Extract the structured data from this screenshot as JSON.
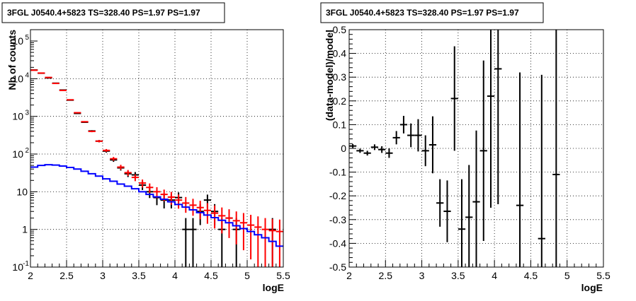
{
  "colors": {
    "data": "#000000",
    "model_sum": "#ff0000",
    "source_model": "#0000ff",
    "grid": "#000000",
    "background": "#ffffff"
  },
  "chart_data": [
    {
      "type": "scatter",
      "title": "3FGL J0540.4+5823 TS=328.40 PS=1.97 PS=1.97",
      "xlabel": "logE",
      "ylabel": "Nb of counts",
      "xlim": [
        2,
        5.5
      ],
      "ylim": [
        0.1,
        200000
      ],
      "yscale": "log",
      "grid": true,
      "x_ticks": [
        "2",
        "2.5",
        "3",
        "3.5",
        "4",
        "4.5",
        "5",
        "5.5"
      ],
      "y_ticks": [
        {
          "value": 0.1,
          "label": "10",
          "exp": "-1"
        },
        {
          "value": 1,
          "label": "1",
          "exp": ""
        },
        {
          "value": 10,
          "label": "10",
          "exp": ""
        },
        {
          "value": 100,
          "label": "10",
          "exp": "2"
        },
        {
          "value": 1000,
          "label": "10",
          "exp": "3"
        },
        {
          "value": 10000,
          "label": "10",
          "exp": "4"
        },
        {
          "value": 100000,
          "label": "10",
          "exp": "5"
        }
      ],
      "bin_width": 0.1,
      "series": [
        {
          "kind": "data",
          "x": [
            2.05,
            2.15,
            2.25,
            2.35,
            2.45,
            2.55,
            2.65,
            2.75,
            2.85,
            2.95,
            3.05,
            3.15,
            3.25,
            3.35,
            3.45,
            3.55,
            3.65,
            3.75,
            3.85,
            3.95,
            4.05,
            4.15,
            4.25,
            4.35,
            4.45,
            4.55,
            4.65,
            4.75,
            4.85,
            4.95,
            5.05,
            5.15,
            5.25,
            5.35,
            5.45
          ],
          "y": [
            17000,
            14000,
            10500,
            7600,
            5000,
            2700,
            1200,
            700,
            410,
            220,
            120,
            70,
            43,
            30,
            28,
            15,
            10,
            7,
            6,
            6,
            7,
            1,
            1,
            3,
            6,
            3,
            1,
            2,
            1,
            0,
            0,
            0,
            0,
            1,
            0
          ],
          "err": [
            130,
            118,
            102,
            87,
            70,
            52,
            35,
            26,
            20,
            15,
            11,
            8,
            6.5,
            5.5,
            5.3,
            3.9,
            3.2,
            2.6,
            2.4,
            2.4,
            2.6,
            1,
            1,
            1.7,
            2.4,
            1.7,
            1,
            1.4,
            1,
            0,
            0,
            0,
            0,
            1,
            0
          ]
        },
        {
          "kind": "model_sum",
          "x": [
            2.05,
            2.15,
            2.25,
            2.35,
            2.45,
            2.55,
            2.65,
            2.75,
            2.85,
            2.95,
            3.05,
            3.15,
            3.25,
            3.35,
            3.45,
            3.55,
            3.65,
            3.75,
            3.85,
            3.95,
            4.05,
            4.15,
            4.25,
            4.35,
            4.45,
            4.55,
            4.65,
            4.75,
            4.85,
            4.95,
            5.05,
            5.15,
            5.25,
            5.35,
            5.45
          ],
          "y": [
            16800,
            14100,
            10800,
            7500,
            4900,
            2750,
            1250,
            720,
            400,
            220,
            125,
            75,
            45,
            32,
            24,
            17,
            13,
            10,
            8.5,
            7.2,
            6,
            5,
            4.4,
            3.8,
            3.2,
            2.7,
            2.3,
            2,
            1.7,
            1.5,
            1.3,
            1.15,
            1,
            0.93,
            0.88
          ],
          "err": [
            130,
            119,
            104,
            87,
            70,
            52,
            35,
            27,
            20,
            15,
            11,
            8.7,
            6.7,
            5.7,
            4.9,
            4.1,
            3.6,
            3.2,
            2.9,
            2.7,
            2.45,
            2.24,
            2.1,
            1.95,
            1.79,
            1.64,
            1.52,
            1.41,
            1.3,
            1.22,
            1.14,
            1.07,
            1,
            0.96,
            0.94
          ]
        },
        {
          "kind": "source_model",
          "edges": [
            2.0,
            2.1,
            2.2,
            2.3,
            2.4,
            2.5,
            2.6,
            2.7,
            2.8,
            2.9,
            3.0,
            3.1,
            3.2,
            3.3,
            3.4,
            3.5,
            3.6,
            3.7,
            3.8,
            3.9,
            4.0,
            4.1,
            4.2,
            4.3,
            4.4,
            4.5,
            4.6,
            4.7,
            4.8,
            4.9,
            5.0,
            5.1,
            5.2,
            5.3,
            5.4,
            5.5
          ],
          "y": [
            45,
            50,
            52,
            51,
            48,
            44,
            40,
            35,
            30,
            26,
            22,
            19,
            16,
            14,
            12,
            10,
            8.5,
            7.3,
            6.3,
            5.4,
            4.6,
            3.9,
            3.3,
            2.8,
            2.4,
            2.05,
            1.75,
            1.5,
            1.25,
            1.05,
            0.88,
            0.72,
            0.6,
            0.48,
            0.36
          ]
        }
      ]
    },
    {
      "type": "scatter",
      "title": "3FGL J0540.4+5823 TS=328.40 PS=1.97 PS=1.97",
      "xlabel": "logE",
      "ylabel": "(data-model)/model",
      "xlim": [
        2,
        5.5
      ],
      "ylim": [
        -0.5,
        0.5
      ],
      "yscale": "linear",
      "grid": true,
      "x_ticks": [
        "2",
        "2.5",
        "3",
        "3.5",
        "4",
        "4.5",
        "5",
        "5.5"
      ],
      "y_ticks": [
        "-0.5",
        "-0.4",
        "-0.3",
        "-0.2",
        "-0.1",
        "0",
        "0.1",
        "0.2",
        "0.3",
        "0.4",
        "0.5"
      ],
      "bin_width": 0.1,
      "series": [
        {
          "kind": "residual",
          "x": [
            2.05,
            2.15,
            2.25,
            2.35,
            2.45,
            2.55,
            2.65,
            2.75,
            2.85,
            2.95,
            3.05,
            3.15,
            3.25,
            3.35,
            3.45,
            3.55,
            3.65,
            3.75,
            3.85,
            3.95,
            4.05,
            4.35,
            4.65,
            4.85
          ],
          "y": [
            0.01,
            -0.01,
            -0.02,
            0.005,
            -0.005,
            -0.02,
            0.045,
            0.1,
            0.055,
            0.055,
            -0.01,
            0.015,
            -0.23,
            -0.265,
            0.21,
            -0.34,
            -0.29,
            -0.225,
            -0.01,
            0.22,
            0.335,
            -0.24,
            -0.38,
            -0.11
          ],
          "err": [
            0.008,
            0.009,
            0.01,
            0.012,
            0.014,
            0.02,
            0.028,
            0.037,
            0.05,
            0.068,
            0.065,
            0.12,
            0.1,
            0.13,
            0.22,
            0.21,
            0.22,
            0.3,
            0.38,
            0.47,
            0.57,
            0.56,
            0.69,
            0.82
          ]
        }
      ]
    }
  ]
}
